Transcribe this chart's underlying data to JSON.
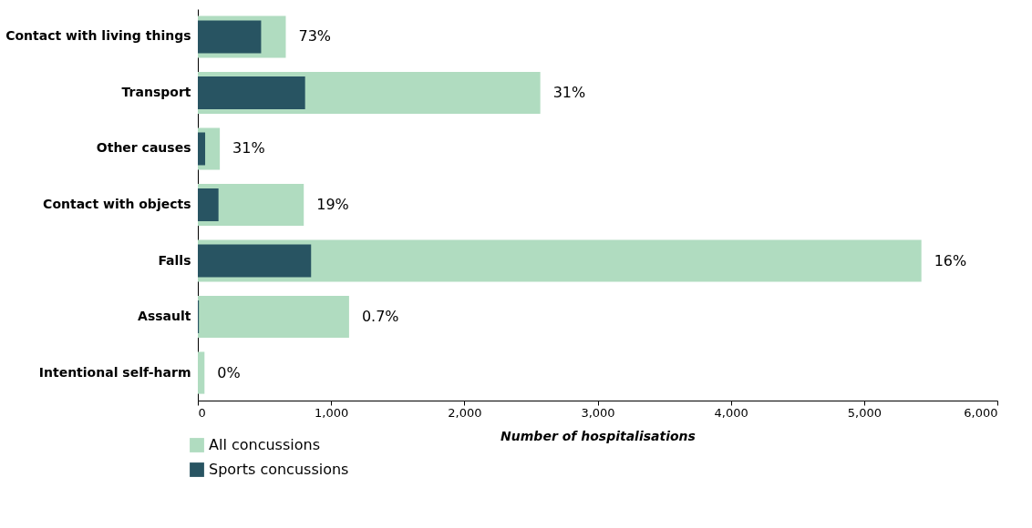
{
  "chart_data": {
    "type": "bar",
    "orientation": "horizontal",
    "xlabel": "Number of hospitalisations",
    "categories": [
      "Contact with living things",
      "Transport",
      "Other causes",
      "Contact with objects",
      "Falls",
      "Assault",
      "Intentional self-harm"
    ],
    "series": [
      {
        "name": "All concussions",
        "color": "#b0dcc0",
        "values": [
          660,
          2570,
          165,
          795,
          5430,
          1135,
          50
        ]
      },
      {
        "name": "Sports concussions",
        "color": "#285462",
        "values": [
          475,
          805,
          55,
          155,
          850,
          8,
          0
        ]
      }
    ],
    "annotations": [
      {
        "text": "73%",
        "x": 660,
        "y": "Contact with living things"
      },
      {
        "text": "31%",
        "x": 2570,
        "y": "Transport"
      },
      {
        "text": "31%",
        "x": 165,
        "y": "Other causes"
      },
      {
        "text": "19%",
        "x": 795,
        "y": "Contact with objects"
      },
      {
        "text": "16%",
        "x": 5430,
        "y": "Falls"
      },
      {
        "text": "0.7%",
        "x": 1135,
        "y": "Assault"
      },
      {
        "text": "0%",
        "x": 50,
        "y": "Intentional self-harm"
      }
    ],
    "xlim": [
      0,
      6000
    ],
    "xticks": [
      {
        "value": 0,
        "label": "0"
      },
      {
        "value": 1000,
        "label": "1,000"
      },
      {
        "value": 2000,
        "label": "2,000"
      },
      {
        "value": 3000,
        "label": "3,000"
      },
      {
        "value": 4000,
        "label": "4,000"
      },
      {
        "value": 5000,
        "label": "5,000"
      },
      {
        "value": 6000,
        "label": "6,000"
      }
    ],
    "grid": false,
    "legend": "bottom left"
  }
}
